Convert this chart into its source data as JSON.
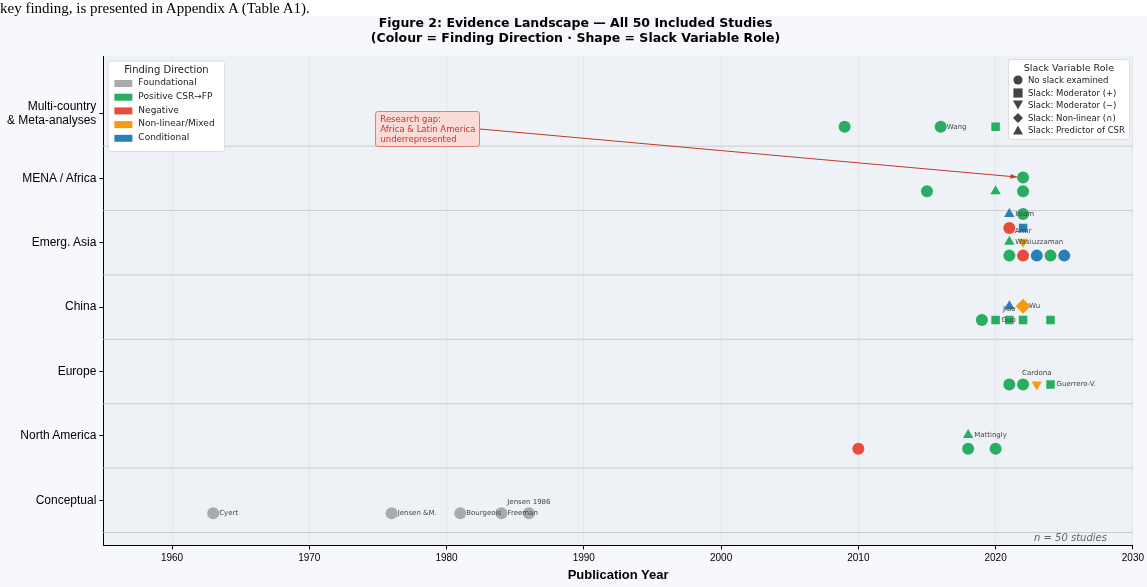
{
  "chart_data": [
    {
      "type": "scatter",
      "orientation": "horizontal",
      "title": "Figure 2: Evidence Landscape — All 50 Included Studies",
      "subtitle": "(Colour = Finding Direction · Shape = Slack Variable Role)",
      "xlabel": "Publication Year",
      "legend_title": "Finding Direction",
      "legend": "top left",
      "grid": true,
      "xlim": [
        1955,
        2030
      ],
      "xticks": [
        1960,
        1970,
        1980,
        1990,
        2000,
        2010,
        2020,
        2030
      ],
      "categories": [
        "Multi-country\n& Meta-analyses",
        "MENA / Africa",
        "Emerg. Asia",
        "China",
        "Europe",
        "North America",
        "Conceptual"
      ],
      "series": [
        {
          "type": "scatter",
          "name": "Foundational",
          "color": "#aaaaaa",
          "marker": "circle",
          "x": [
            "Conceptual",
            "Conceptual",
            "Conceptual",
            "Conceptual",
            "Conceptual"
          ],
          "values": [
            1963,
            1976,
            1981,
            1984,
            1986
          ],
          "value_labels": [
            "Cyert",
            "Jensen &M.",
            "Bourgeois",
            "Freeman",
            "Jensen 1986"
          ]
        },
        {
          "type": "scatter",
          "name": "Positive CSR→FP",
          "color": "#27ae60",
          "marker": "circle",
          "x": [
            "Multi-country\n& Meta-analyses",
            "Multi-country\n& Meta-analyses",
            "MENA / Africa",
            "MENA / Africa",
            "MENA / Africa",
            "Emerg. Asia",
            "Emerg. Asia",
            "China",
            "Europe",
            "Europe",
            "North America",
            "North America"
          ],
          "values": [
            2009,
            2016,
            2015,
            2022,
            2022,
            2021,
            2024,
            2019,
            2021,
            2022,
            2018,
            2020
          ],
          "value_labels": [
            null,
            "Wang",
            null,
            null,
            null,
            null,
            null,
            null,
            null,
            null,
            null,
            null
          ]
        },
        {
          "type": "scatter",
          "color": "#27ae60",
          "marker": "square",
          "x": [
            "Multi-country\n& Meta-analyses",
            "China",
            "China",
            "China",
            "China",
            "Europe"
          ],
          "values": [
            2020,
            2022,
            2020,
            2021,
            2024,
            2024
          ],
          "value_labels": [
            null,
            null,
            "Guo",
            "Jiao",
            null,
            "Guerrero-V."
          ]
        },
        {
          "type": "scatter",
          "color": "#27ae60",
          "marker": "triangle",
          "x": [
            "MENA / Africa",
            "Emerg. Asia",
            "North America"
          ],
          "values": [
            2020,
            2021,
            2018
          ],
          "value_labels": [
            null,
            "Wasiuzzaman",
            "Mattingly"
          ]
        },
        {
          "type": "scatter",
          "name": "Negative",
          "color": "#e74c3c",
          "marker": "circle",
          "x": [
            "Emerg. Asia",
            "Emerg. Asia",
            "North America"
          ],
          "values": [
            2021,
            2022,
            2010
          ]
        },
        {
          "type": "scatter",
          "name": "Non-linear/Mixed",
          "color": "#f39c12",
          "marker": "triangle_down",
          "x": [
            "Emerg. Asia",
            "Europe"
          ],
          "values": [
            2022,
            2023
          ],
          "value_labels": [
            "Amir",
            "Cardona"
          ]
        },
        {
          "type": "scatter",
          "color": "#f39c12",
          "marker": "diamond",
          "x": [
            "China"
          ],
          "values": [
            2022
          ],
          "value_labels": [
            "Wu"
          ]
        },
        {
          "type": "scatter",
          "name": "Conditional",
          "color": "#2980b9",
          "marker": "triangle",
          "x": [
            "Emerg. Asia",
            "China"
          ],
          "values": [
            2021,
            2021
          ],
          "value_labels": [
            "Islam",
            null
          ]
        },
        {
          "type": "scatter",
          "color": "#2980b9",
          "marker": "square",
          "x": [
            "Emerg. Asia"
          ],
          "values": [
            2022
          ]
        },
        {
          "type": "scatter",
          "color": "#2980b9",
          "marker": "circle",
          "x": [
            "Emerg. Asia",
            "Emerg. Asia"
          ],
          "values": [
            2023,
            2025
          ]
        },
        {
          "type": "scatter",
          "color": "#27ae60",
          "marker": "circle",
          "x": [
            "Emerg. Asia"
          ],
          "values": [
            2022
          ]
        }
      ],
      "annotations": [
        "key finding, is presented in Appendix A (Table A1).",
        "n = 50 studies",
        "Research gap:\nAfrica & Latin America\nunderrepresented"
      ]
    },
    {
      "type": "other",
      "title": "Slack Variable Role",
      "categories": [
        "No slack examined",
        "Slack: Moderator (+)",
        "Slack: Moderator (−)",
        "Slack: Non-linear (∩)",
        "Slack: Predictor of CSR"
      ]
    }
  ]
}
